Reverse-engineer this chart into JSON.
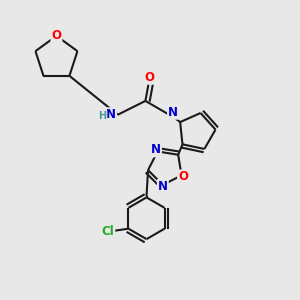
{
  "background_color": "#e8e8e8",
  "bond_color": "#1a1a1a",
  "bond_width": 1.5,
  "atom_colors": {
    "O": "#ff0000",
    "N": "#0000cc",
    "Cl": "#22aa22",
    "C": "#1a1a1a",
    "H": "#4a9a9a"
  },
  "figsize": [
    3.0,
    3.0
  ],
  "dpi": 100
}
